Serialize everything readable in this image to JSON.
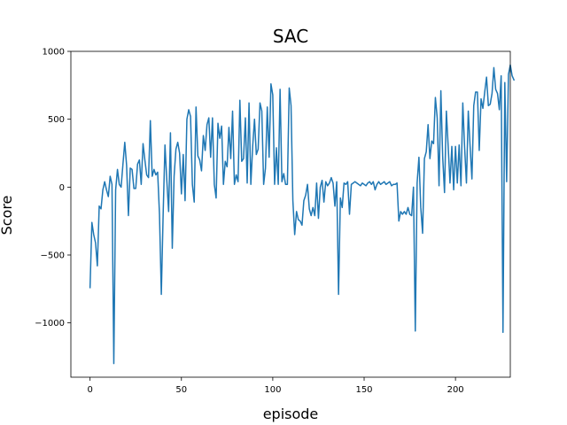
{
  "chart_data": {
    "type": "line",
    "title": "SAC",
    "xlabel": "episode",
    "ylabel": "Score",
    "xlim": [
      -10.5,
      230
    ],
    "ylim": [
      -1400,
      1000
    ],
    "xticks": [
      0,
      50,
      100,
      150,
      200
    ],
    "yticks": [
      -1000,
      -500,
      0,
      500,
      1000
    ],
    "xtick_labels": [
      "0",
      "50",
      "100",
      "150",
      "200"
    ],
    "ytick_labels": [
      "−1000",
      "−500",
      "0",
      "500",
      "1000"
    ],
    "grid": false,
    "line_color": "#1f77b4",
    "series": [
      {
        "values": [
          -740,
          -260,
          -350,
          -410,
          -580,
          -140,
          -160,
          -20,
          40,
          -20,
          -70,
          80,
          20,
          -1300,
          -20,
          130,
          20,
          0,
          170,
          330,
          160,
          -210,
          140,
          130,
          -10,
          -10,
          170,
          200,
          20,
          320,
          200,
          90,
          70,
          490,
          80,
          130,
          90,
          110,
          -200,
          -790,
          -200,
          310,
          50,
          -180,
          400,
          -450,
          80,
          280,
          330,
          250,
          -50,
          240,
          -100,
          500,
          570,
          520,
          20,
          -110,
          590,
          230,
          200,
          120,
          380,
          270,
          460,
          510,
          220,
          510,
          20,
          -80,
          470,
          360,
          450,
          20,
          190,
          150,
          440,
          210,
          560,
          20,
          90,
          40,
          640,
          190,
          210,
          510,
          30,
          620,
          20,
          300,
          500,
          240,
          280,
          620,
          560,
          20,
          140,
          590,
          220,
          760,
          680,
          20,
          290,
          20,
          720,
          40,
          100,
          20,
          20,
          730,
          600,
          -100,
          -350,
          -180,
          -240,
          -250,
          -280,
          -100,
          -60,
          20,
          -160,
          -210,
          -150,
          -210,
          30,
          -230,
          0,
          50,
          -110,
          40,
          10,
          30,
          70,
          30,
          -140,
          40,
          -790,
          -80,
          -150,
          30,
          20,
          40,
          -200,
          20,
          30,
          40,
          30,
          20,
          10,
          30,
          20,
          10,
          30,
          40,
          20,
          40,
          -20,
          20,
          40,
          20,
          30,
          40,
          20,
          30,
          40,
          10,
          20,
          20,
          30,
          -250,
          -180,
          -200,
          -180,
          -200,
          -150,
          -200,
          -210,
          0,
          -1060,
          30,
          220,
          -150,
          -340,
          210,
          260,
          460,
          210,
          340,
          320,
          660,
          510,
          10,
          710,
          220,
          -40,
          560,
          300,
          30,
          300,
          -20,
          300,
          30,
          310,
          10,
          620,
          290,
          30,
          560,
          300,
          60,
          600,
          700,
          700,
          270,
          650,
          580,
          700,
          810,
          600,
          610,
          690,
          880,
          720,
          690,
          570,
          820,
          -1070,
          770,
          40,
          830,
          900,
          820,
          790
        ]
      }
    ]
  }
}
